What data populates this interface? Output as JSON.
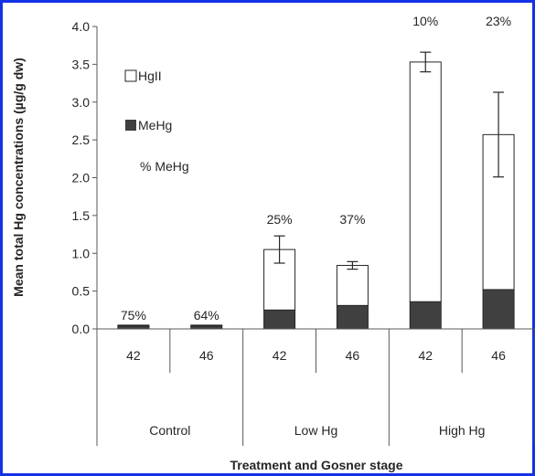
{
  "chart_data": {
    "type": "bar",
    "stacked": true,
    "ylabel": "Mean total Hg  concentrations (µg/g dw)",
    "xlabel": "Treatment and Gosner stage",
    "ylim": [
      0,
      4.0
    ],
    "yticks": [
      "0.0",
      "0.5",
      "1.0",
      "1.5",
      "2.0",
      "2.5",
      "3.0",
      "3.5",
      "4.0"
    ],
    "ytick_values": [
      0,
      0.5,
      1.0,
      1.5,
      2.0,
      2.5,
      3.0,
      3.5,
      4.0
    ],
    "stages": [
      "42",
      "46",
      "42",
      "46",
      "42",
      "46"
    ],
    "groups": [
      "Control",
      "Low Hg",
      "High Hg"
    ],
    "series": [
      {
        "name": "MeHg",
        "color": "#404040",
        "values": [
          0.04,
          0.04,
          0.25,
          0.31,
          0.36,
          0.52
        ]
      },
      {
        "name": "HgII",
        "color": "#ffffff",
        "values": [
          0.01,
          0.01,
          0.8,
          0.53,
          3.17,
          2.05
        ]
      }
    ],
    "totals": [
      0.05,
      0.05,
      1.05,
      0.84,
      3.53,
      2.57
    ],
    "error": [
      0,
      0,
      0.18,
      0.05,
      0.13,
      0.56
    ],
    "percent_labels": [
      "75%",
      "64%",
      "25%",
      "37%",
      "10%",
      "23%"
    ],
    "legend": {
      "hgii": "HgII",
      "mehg": "MeHg",
      "pct": "% MeHg",
      "placement": "top-left"
    },
    "grid": false
  }
}
